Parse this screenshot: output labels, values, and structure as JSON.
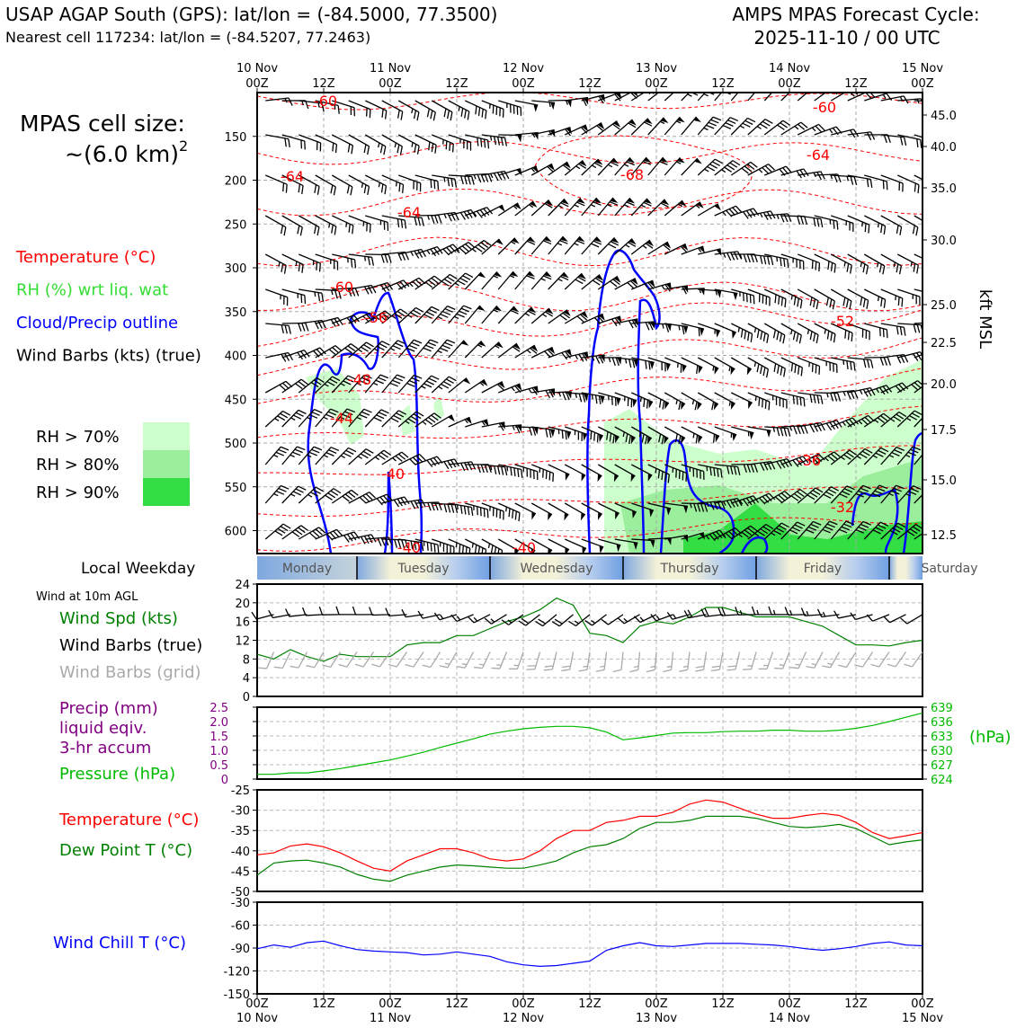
{
  "header": {
    "title_left": "USAP AGAP South (GPS): lat/lon = (-84.5000, 77.3500)",
    "nearest": "Nearest cell 117234: lat/lon = (-84.5207, 77.2463)",
    "title_right_1": "AMPS MPAS Forecast Cycle:",
    "title_right_2": "2025-11-10 / 00 UTC"
  },
  "colors": {
    "temperature": "#ff0000",
    "rh": "#33dd33",
    "cloud": "#0000ff",
    "wind": "#000000",
    "grid_barb": "#aaaaaa",
    "precip": "#800080",
    "pressure": "#00bb00",
    "dewpoint": "#008000",
    "windchill": "#0000ff"
  },
  "cross_section": {
    "cell_size_label": "MPAS cell size:",
    "cell_size_value": "~(6.0 km)",
    "cell_size_exp": "2",
    "legend": [
      {
        "label": "Temperature (°C)",
        "color": "#ff0000"
      },
      {
        "label": "RH (%) wrt liq. wat",
        "color": "#33dd33"
      },
      {
        "label": "Cloud/Precip outline",
        "color": "#0000ff"
      },
      {
        "label": "Wind Barbs (kts) (true)",
        "color": "#000000"
      }
    ],
    "rh_legend": [
      {
        "label": "RH > 70%",
        "color": "#ccffcc"
      },
      {
        "label": "RH > 80%",
        "color": "#9bee9b"
      },
      {
        "label": "RH > 90%",
        "color": "#33dd44"
      }
    ],
    "pressure_ticks": [
      "150",
      "200",
      "250",
      "300",
      "350",
      "400",
      "450",
      "500",
      "550",
      "600"
    ],
    "kft_ticks": [
      "45.0",
      "40.0",
      "35.0",
      "30.0",
      "25.0",
      "22.5",
      "20.0",
      "17.5",
      "15.0",
      "12.5"
    ],
    "right_axis_label": "kft MSL",
    "top_date_labels": [
      "10 Nov",
      "11 Nov",
      "12 Nov",
      "13 Nov",
      "14 Nov",
      "15 Nov"
    ],
    "top_time_labels": [
      "00Z",
      "12Z",
      "00Z",
      "12Z",
      "00Z",
      "12Z",
      "00Z",
      "12Z",
      "00Z",
      "12Z",
      "00Z"
    ],
    "temp_labels": [
      "-60",
      "-60",
      "-64",
      "-64",
      "-64",
      "-68",
      "-60",
      "-56",
      "-52",
      "-48",
      "-44",
      "-40",
      "-40",
      "-40",
      "-36",
      "-32"
    ]
  },
  "weekday": {
    "label": "Local Weekday",
    "days": [
      "Monday",
      "Tuesday",
      "Wednesday",
      "Thursday",
      "Friday",
      "Saturday"
    ]
  },
  "wind_panel": {
    "note": "Wind at 10m AGL",
    "legend": [
      {
        "label": "Wind Spd (kts)",
        "color": "#008000"
      },
      {
        "label": "Wind Barbs (true)",
        "color": "#000000"
      },
      {
        "label": "Wind Barbs (grid)",
        "color": "#aaaaaa"
      }
    ],
    "yticks": [
      "0",
      "4",
      "8",
      "12",
      "16",
      "20",
      "24"
    ]
  },
  "precip_panel": {
    "legend": [
      {
        "label": "Precip (mm)",
        "color": "#800080"
      },
      {
        "label": "liquid eqiv.",
        "color": "#800080"
      },
      {
        "label": "3-hr accum",
        "color": "#800080"
      },
      {
        "label": "Pressure (hPa)",
        "color": "#00bb00"
      }
    ],
    "left_ticks": [
      "0",
      "0.5",
      "1.0",
      "1.5",
      "2.0",
      "2.5"
    ],
    "right_ticks": [
      "624",
      "627",
      "630",
      "633",
      "636",
      "639"
    ],
    "right_unit": "(hPa)"
  },
  "temp_panel": {
    "legend": [
      {
        "label": "Temperature (°C)",
        "color": "#ff0000"
      },
      {
        "label": "Dew Point T (°C)",
        "color": "#008000"
      }
    ],
    "yticks": [
      "-50",
      "-45",
      "-40",
      "-35",
      "-30",
      "-25"
    ]
  },
  "chill_panel": {
    "legend": [
      {
        "label": "Wind Chill T (°C)",
        "color": "#0000ff"
      }
    ],
    "yticks": [
      "-150",
      "-120",
      "-90",
      "-60",
      "-30"
    ]
  },
  "bottom_axis": {
    "time_labels": [
      "00Z",
      "12Z",
      "00Z",
      "12Z",
      "00Z",
      "12Z",
      "00Z",
      "12Z",
      "00Z",
      "12Z",
      "00Z"
    ],
    "date_labels": [
      "10 Nov",
      "11 Nov",
      "12 Nov",
      "13 Nov",
      "14 Nov",
      "15 Nov"
    ]
  },
  "chart_data": [
    {
      "type": "line",
      "name": "10 m wind speed",
      "x_hours": [
        0,
        3,
        6,
        9,
        12,
        15,
        18,
        21,
        24,
        27,
        30,
        33,
        36,
        39,
        42,
        45,
        48,
        51,
        54,
        57,
        60,
        63,
        66,
        69,
        72,
        75,
        78,
        81,
        84,
        87,
        90,
        93,
        96,
        99,
        102,
        105,
        108,
        111,
        114,
        117,
        120
      ],
      "x_labels": [
        "00Z",
        "12Z",
        "00Z",
        "12Z",
        "00Z",
        "12Z",
        "00Z",
        "12Z",
        "00Z",
        "12Z",
        "00Z"
      ],
      "ylim": [
        0,
        24
      ],
      "series": [
        {
          "name": "Wind Spd (kts)",
          "values": [
            9,
            8,
            10,
            8.5,
            7.5,
            9,
            8.5,
            8.5,
            8.5,
            11,
            11.5,
            11.5,
            13,
            13,
            14.5,
            16,
            17,
            18.5,
            21,
            19.5,
            13.5,
            13,
            11.5,
            15,
            16,
            15.5,
            17,
            19,
            19,
            18,
            17,
            17,
            17,
            16,
            15,
            13,
            11,
            11,
            10.8,
            11.5,
            12
          ]
        }
      ]
    },
    {
      "type": "line",
      "name": "Surface pressure",
      "x_hours": [
        0,
        3,
        6,
        9,
        12,
        15,
        18,
        21,
        24,
        27,
        30,
        33,
        36,
        39,
        42,
        45,
        48,
        51,
        54,
        57,
        60,
        63,
        66,
        69,
        72,
        75,
        78,
        81,
        84,
        87,
        90,
        93,
        96,
        99,
        102,
        105,
        108,
        111,
        114,
        117,
        120
      ],
      "ylim": [
        624,
        639
      ],
      "series": [
        {
          "name": "Pressure (hPa)",
          "values": [
            625,
            625,
            625.3,
            625.3,
            625.7,
            626.2,
            626.8,
            627.4,
            628,
            628.8,
            629.6,
            630.6,
            631.5,
            632.4,
            633.4,
            634,
            634.5,
            634.8,
            635,
            635,
            634.7,
            633.8,
            632.2,
            632.6,
            633.1,
            633.6,
            633.7,
            633.7,
            633.9,
            634,
            634,
            634.2,
            634.2,
            634,
            634,
            634.2,
            634.6,
            635.2,
            636,
            636.9,
            637.8
          ]
        }
      ]
    },
    {
      "type": "line",
      "name": "Temperature and dew point",
      "x_hours": [
        0,
        3,
        6,
        9,
        12,
        15,
        18,
        21,
        24,
        27,
        30,
        33,
        36,
        39,
        42,
        45,
        48,
        51,
        54,
        57,
        60,
        63,
        66,
        69,
        72,
        75,
        78,
        81,
        84,
        87,
        90,
        93,
        96,
        99,
        102,
        105,
        108,
        111,
        114,
        117,
        120
      ],
      "ylim": [
        -50,
        -25
      ],
      "series": [
        {
          "name": "Temperature (°C)",
          "values": [
            -41,
            -40.5,
            -38.8,
            -38.3,
            -39,
            -40.5,
            -42.5,
            -44.3,
            -45,
            -42.5,
            -41,
            -39.5,
            -39.5,
            -40.5,
            -42,
            -42.5,
            -42,
            -40,
            -37,
            -35,
            -35,
            -33,
            -32.5,
            -31.5,
            -31.5,
            -30.5,
            -28.5,
            -27.5,
            -28,
            -29.5,
            -31,
            -32,
            -32,
            -31.3,
            -30.8,
            -31.3,
            -33,
            -35.5,
            -37,
            -36.3,
            -35.5
          ]
        },
        {
          "name": "Dew Point T (°C)",
          "values": [
            -46,
            -43,
            -42.5,
            -42.3,
            -43,
            -44,
            -45.8,
            -47,
            -47.5,
            -46,
            -45,
            -44,
            -43.5,
            -43.7,
            -44,
            -44.3,
            -44.3,
            -43.5,
            -42.5,
            -40.5,
            -39,
            -38.5,
            -37,
            -34.5,
            -33,
            -33,
            -32.5,
            -31.5,
            -31.5,
            -31.5,
            -32,
            -33,
            -34,
            -34.3,
            -34,
            -33.5,
            -34.5,
            -36.5,
            -38.5,
            -37.8,
            -37.3
          ]
        }
      ]
    },
    {
      "type": "line",
      "name": "Wind chill",
      "x_hours": [
        0,
        3,
        6,
        9,
        12,
        15,
        18,
        21,
        24,
        27,
        30,
        33,
        36,
        39,
        42,
        45,
        48,
        51,
        54,
        57,
        60,
        63,
        66,
        69,
        72,
        75,
        78,
        81,
        84,
        87,
        90,
        93,
        96,
        99,
        102,
        105,
        108,
        111,
        114,
        117,
        120
      ],
      "ylim": [
        -150,
        -30
      ],
      "series": [
        {
          "name": "Wind Chill T (°C)",
          "values": [
            -91,
            -86,
            -89,
            -83,
            -81,
            -87,
            -92,
            -94,
            -95,
            -96,
            -99,
            -98,
            -95,
            -98,
            -101,
            -108,
            -112,
            -114,
            -113,
            -110,
            -107,
            -93,
            -87,
            -83,
            -87,
            -88,
            -86,
            -84,
            -84,
            -84,
            -85,
            -86,
            -88,
            -91,
            -93,
            -91,
            -88,
            -84,
            -82,
            -86,
            -87
          ]
        }
      ]
    }
  ]
}
